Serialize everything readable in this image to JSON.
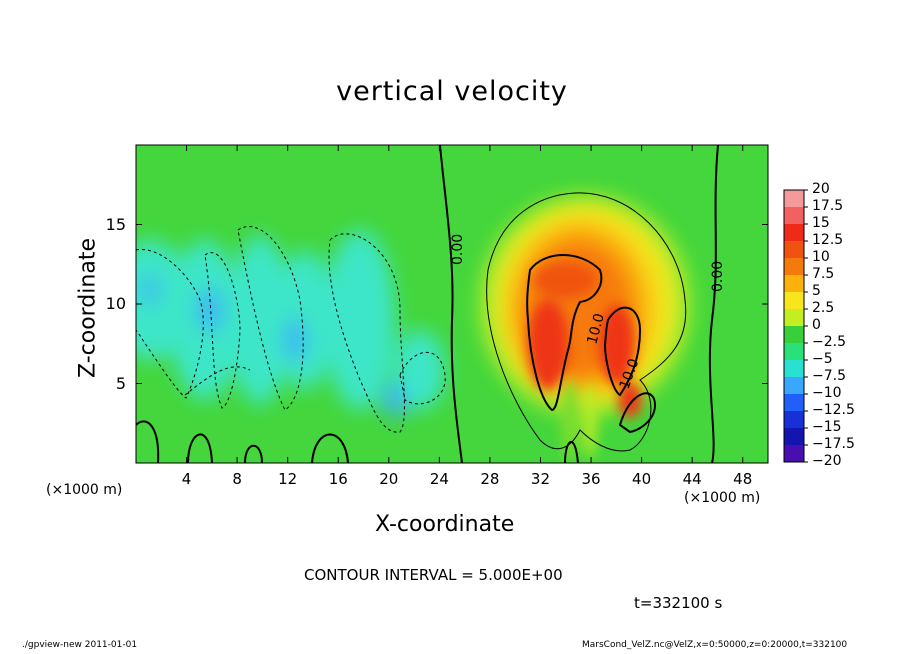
{
  "chart_data": {
    "type": "heatmap",
    "title": "vertical velocity",
    "xlabel": "X-coordinate",
    "ylabel": "Z-coordinate",
    "x_unit_left": "(×1000 m)",
    "x_unit_right": "(×1000 m)",
    "xlim": [
      0,
      50
    ],
    "ylim": [
      0,
      20
    ],
    "x_ticks": [
      4,
      8,
      12,
      16,
      20,
      24,
      28,
      32,
      36,
      40,
      44,
      48
    ],
    "y_ticks": [
      5,
      10,
      15
    ],
    "colorbar": {
      "levels": [
        "20",
        "17.5",
        "15",
        "12.5",
        "10",
        "7.5",
        "5",
        "2.5",
        "0",
        "−2.5",
        "−5",
        "−7.5",
        "−10",
        "−12.5",
        "−15",
        "−17.5",
        "−20"
      ],
      "colors": [
        "#f49a9a",
        "#f26060",
        "#ee2a18",
        "#f05210",
        "#f57a0c",
        "#fbb20c",
        "#f8e61c",
        "#c2ee22",
        "#38d03a",
        "#2ae078",
        "#2ae0d2",
        "#38a8ff",
        "#2060f8",
        "#1830d8",
        "#1414b0",
        "#480eb0"
      ]
    },
    "contour_labels": [
      "0.00",
      "10.0",
      "10.0",
      "0.00"
    ],
    "contour_interval": "CONTOUR INTERVAL = 5.000E+00",
    "time": "t=332100 s",
    "features": {
      "updraft_core_max": 15,
      "updraft_center_x": 35,
      "updraft_range_x": [
        28,
        42
      ],
      "downdraft_min": -7.5,
      "downdraft_range_x": [
        0,
        24
      ]
    }
  },
  "footer": {
    "left": "./gpview-new   2011-01-01",
    "right": "MarsCond_VelZ.nc@VelZ,x=0:50000,z=0:20000,t=332100"
  }
}
